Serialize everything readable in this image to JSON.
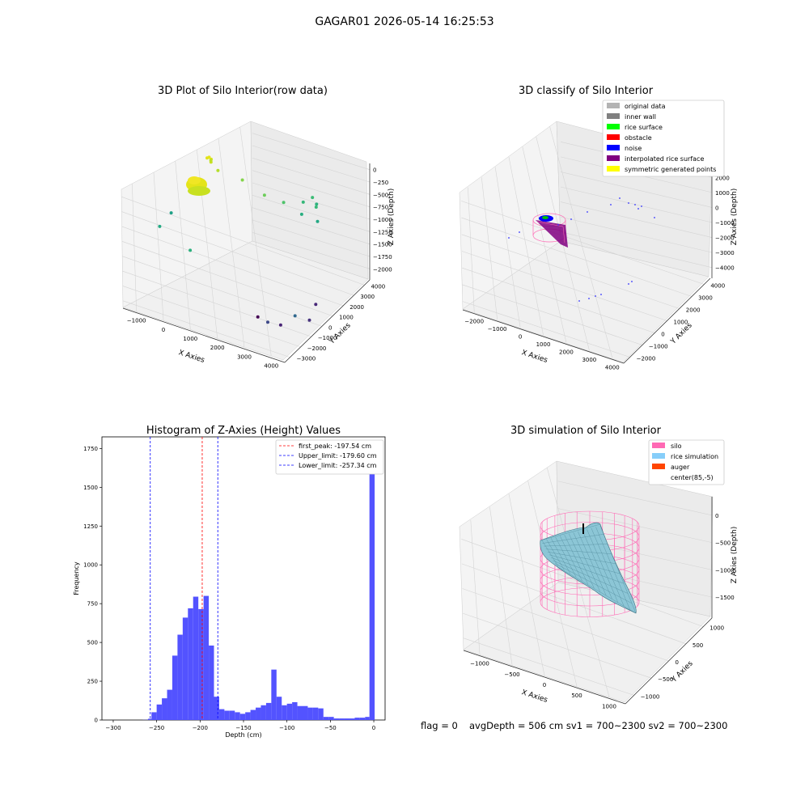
{
  "suptitle": "GAGAR01 2026-05-14 16:25:53",
  "footer": {
    "flag": "flag = 0",
    "stats": "avgDepth = 506 cm  sv1 = 700~2300  sv2 = 700~2300"
  },
  "colors": {
    "histogram_bar": "#5050ff",
    "first_peak_line": "#ff0000",
    "limit_lines": "#0000ff",
    "silo_wireframe": "#ff69b4",
    "rice_simulation": "#87cefa",
    "auger": "#ff4500",
    "pane_light": "#f2f2f2",
    "pane_dark": "#e8e8e8",
    "grid": "#d0d0d0"
  },
  "chart_data": [
    {
      "type": "scatter",
      "title": "3D Plot of Silo Interior(row data)",
      "xlabel": "X Axies",
      "ylabel": "Y Axies",
      "zlabel": "Z Axies (Depth)",
      "xticks": [
        "−1000",
        "0",
        "1000",
        "2000",
        "3000",
        "4000"
      ],
      "yticks": [
        "−3000",
        "−2000",
        "−1000",
        "0",
        "1000",
        "2000",
        "3000",
        "4000"
      ],
      "zticks": [
        "0",
        "−250",
        "−500",
        "−750",
        "−1000",
        "−1250",
        "−1500",
        "−1750",
        "−2000"
      ],
      "colormap": "viridis",
      "points": [
        {
          "x": 300,
          "y": 200,
          "z": -200,
          "color": "#e8e419"
        },
        {
          "x": 350,
          "y": 250,
          "z": -230,
          "color": "#d8e219"
        },
        {
          "x": 250,
          "y": 150,
          "z": -210,
          "color": "#e0e21a"
        },
        {
          "x": 400,
          "y": 100,
          "z": -240,
          "color": "#c8e020"
        },
        {
          "x": 320,
          "y": 300,
          "z": -260,
          "color": "#bddf26"
        },
        {
          "x": 600,
          "y": 200,
          "z": -350,
          "color": "#b5de2b"
        },
        {
          "x": 1200,
          "y": 800,
          "z": -500,
          "color": "#84d44b"
        },
        {
          "x": 1800,
          "y": 1200,
          "z": -700,
          "color": "#6ccd5a"
        },
        {
          "x": 2300,
          "y": 1600,
          "z": -800,
          "color": "#4ec36b"
        },
        {
          "x": 2700,
          "y": 2300,
          "z": -850,
          "color": "#35b779"
        },
        {
          "x": 2900,
          "y": 2600,
          "z": -800,
          "color": "#3bbb75"
        },
        {
          "x": 3000,
          "y": 2700,
          "z": -900,
          "color": "#2db27d"
        },
        {
          "x": 3100,
          "y": 2400,
          "z": -880,
          "color": "#37b878"
        },
        {
          "x": 2800,
          "y": 1900,
          "z": -950,
          "color": "#28ae80"
        },
        {
          "x": 3300,
          "y": 2000,
          "z": -1000,
          "color": "#22a884"
        },
        {
          "x": -800,
          "y": -300,
          "z": -1100,
          "color": "#1fa187"
        },
        {
          "x": -1000,
          "y": -800,
          "z": -1250,
          "color": "#23a983"
        },
        {
          "x": 300,
          "y": -1500,
          "z": -1300,
          "color": "#2cb17e"
        },
        {
          "x": 2600,
          "y": -1500,
          "z": -1950,
          "color": "#440154"
        },
        {
          "x": 2900,
          "y": -1400,
          "z": -2000,
          "color": "#3e4989"
        },
        {
          "x": 3300,
          "y": -1300,
          "z": -2000,
          "color": "#482475"
        },
        {
          "x": 3600,
          "y": -800,
          "z": -1900,
          "color": "#31688e"
        },
        {
          "x": 3900,
          "y": -300,
          "z": -2000,
          "color": "#46327e"
        },
        {
          "x": 4000,
          "y": 0,
          "z": -1800,
          "color": "#482878"
        }
      ]
    },
    {
      "type": "scatter",
      "title": "3D classify of Silo Interior",
      "xlabel": "X Axies",
      "ylabel": "Y Axies",
      "zlabel": "Z Axies (Depth)",
      "xticks": [
        "−2000",
        "−1000",
        "0",
        "1000",
        "2000",
        "3000",
        "4000"
      ],
      "yticks": [
        "−2000",
        "−1000",
        "0",
        "1000",
        "2000",
        "3000",
        "4000"
      ],
      "zticks": [
        "2000",
        "1000",
        "0",
        "−1000",
        "−2000",
        "−3000",
        "−4000"
      ],
      "legend": [
        {
          "label": "original data",
          "color": "#b3b3b3"
        },
        {
          "label": "inner wall",
          "color": "#808080"
        },
        {
          "label": "rice surface",
          "color": "#00ff00"
        },
        {
          "label": "obstacle",
          "color": "#ff0000"
        },
        {
          "label": "noise",
          "color": "#0000ff"
        },
        {
          "label": "interpolated rice surface",
          "color": "#800080"
        },
        {
          "label": "symmetric generated points",
          "color": "#ffff00"
        }
      ],
      "legend_loc": "upper right"
    },
    {
      "type": "bar",
      "title": "Histogram of Z-Axies (Height) Values",
      "xlabel": "Depth (cm)",
      "ylabel": "Frequency",
      "xlim": [
        -313,
        13
      ],
      "ylim": [
        0,
        1825
      ],
      "xticks": [
        -300,
        -250,
        -200,
        -150,
        -100,
        -50,
        0
      ],
      "yticks": [
        0,
        250,
        500,
        750,
        1000,
        1250,
        1500,
        1750
      ],
      "bin_width": 6,
      "bins": [
        {
          "x0": -290,
          "count": 0
        },
        {
          "x0": -284,
          "count": 0
        },
        {
          "x0": -278,
          "count": 0
        },
        {
          "x0": -272,
          "count": 0
        },
        {
          "x0": -266,
          "count": 1
        },
        {
          "x0": -260,
          "count": 8
        },
        {
          "x0": -256,
          "count": 50
        },
        {
          "x0": -250,
          "count": 100
        },
        {
          "x0": -244,
          "count": 140
        },
        {
          "x0": -238,
          "count": 195
        },
        {
          "x0": -232,
          "count": 415
        },
        {
          "x0": -226,
          "count": 550
        },
        {
          "x0": -220,
          "count": 660
        },
        {
          "x0": -214,
          "count": 720
        },
        {
          "x0": -208,
          "count": 795
        },
        {
          "x0": -202,
          "count": 715
        },
        {
          "x0": -196,
          "count": 800
        },
        {
          "x0": -190,
          "count": 480
        },
        {
          "x0": -184,
          "count": 150
        },
        {
          "x0": -178,
          "count": 70
        },
        {
          "x0": -172,
          "count": 60
        },
        {
          "x0": -166,
          "count": 60
        },
        {
          "x0": -160,
          "count": 50
        },
        {
          "x0": -154,
          "count": 40
        },
        {
          "x0": -148,
          "count": 50
        },
        {
          "x0": -142,
          "count": 65
        },
        {
          "x0": -136,
          "count": 80
        },
        {
          "x0": -130,
          "count": 95
        },
        {
          "x0": -124,
          "count": 110
        },
        {
          "x0": -118,
          "count": 325
        },
        {
          "x0": -112,
          "count": 150
        },
        {
          "x0": -106,
          "count": 95
        },
        {
          "x0": -100,
          "count": 105
        },
        {
          "x0": -94,
          "count": 115
        },
        {
          "x0": -88,
          "count": 90
        },
        {
          "x0": -82,
          "count": 90
        },
        {
          "x0": -76,
          "count": 80
        },
        {
          "x0": -70,
          "count": 80
        },
        {
          "x0": -64,
          "count": 75
        },
        {
          "x0": -58,
          "count": 20
        },
        {
          "x0": -52,
          "count": 20
        },
        {
          "x0": -46,
          "count": 10
        },
        {
          "x0": -40,
          "count": 10
        },
        {
          "x0": -34,
          "count": 10
        },
        {
          "x0": -28,
          "count": 10
        },
        {
          "x0": -22,
          "count": 15
        },
        {
          "x0": -16,
          "count": 15
        },
        {
          "x0": -10,
          "count": 20
        },
        {
          "x0": -5,
          "count": 1730
        }
      ],
      "vlines": [
        {
          "x": -197.54,
          "label": "first_peak: -197.54 cm",
          "color": "#ff0000"
        },
        {
          "x": -179.6,
          "label": "Upper_limit: -179.60 cm",
          "color": "#0000ff"
        },
        {
          "x": -257.34,
          "label": "Lower_limit: -257.34 cm",
          "color": "#0000ff"
        }
      ],
      "legend_loc": "upper right"
    },
    {
      "type": "surface",
      "title": "3D simulation of Silo Interior",
      "xlabel": "X Axies",
      "ylabel": "Y Axies",
      "zlabel": "Z Axies (Depth)",
      "xticks": [
        "−1000",
        "−500",
        "0",
        "500",
        "1000"
      ],
      "yticks": [
        "−1000",
        "−500",
        "0",
        "500",
        "1000"
      ],
      "zticks": [
        "0",
        "−500",
        "−1000",
        "−1500"
      ],
      "legend": [
        {
          "label": "silo",
          "color": "#ff69b4"
        },
        {
          "label": "rice simulation",
          "color": "#87cefa"
        },
        {
          "label": "auger",
          "color": "#ff4500"
        },
        {
          "label": "center(85,-5)",
          "color": ""
        }
      ],
      "legend_loc": "upper right"
    }
  ]
}
